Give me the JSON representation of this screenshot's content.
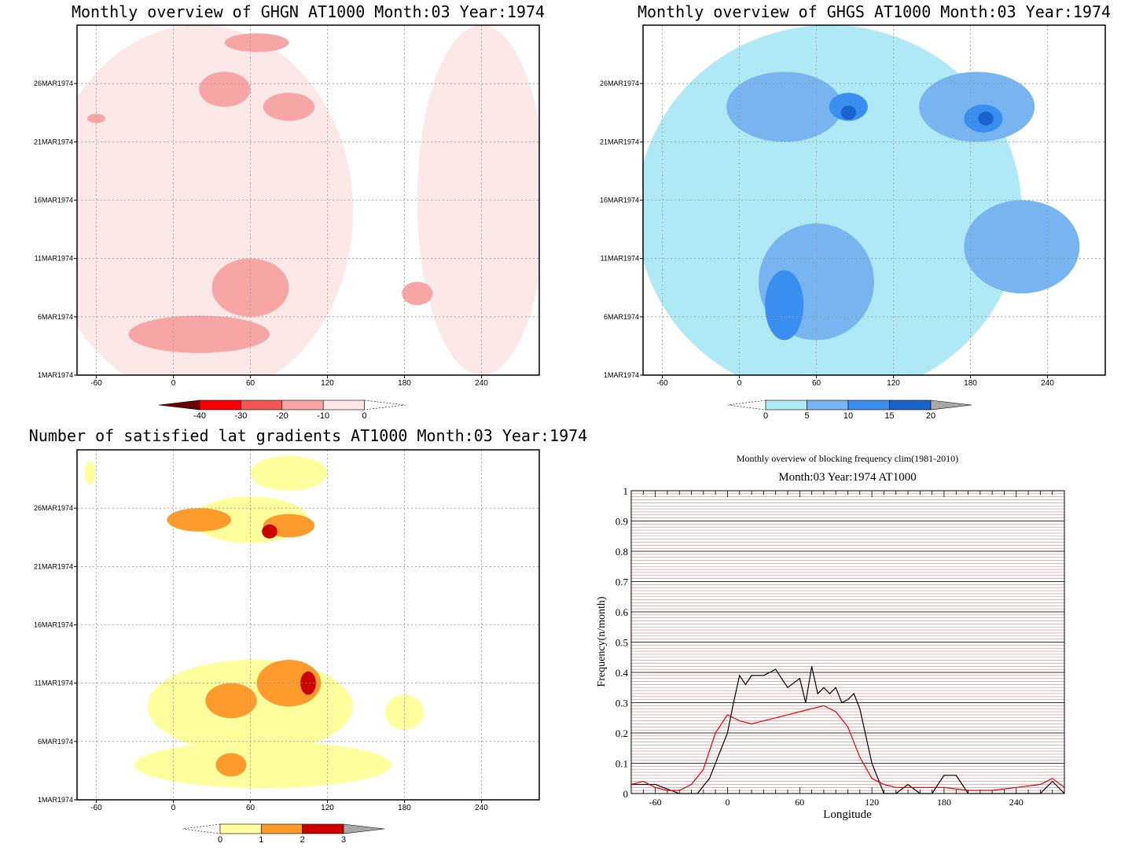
{
  "chart_data": [
    {
      "type": "heatmap",
      "title": "Monthly overview of GHGN AT1000 Month:03 Year:1974",
      "xlim": [
        -75,
        285
      ],
      "x_ticks": [
        "-60",
        "0",
        "60",
        "120",
        "180",
        "240"
      ],
      "y_ticks": [
        "26MAR1974",
        "21MAR1974",
        "16MAR1974",
        "11MAR1974",
        "6MAR1974",
        "1MAR1974"
      ],
      "colorbar": {
        "labels": [
          "-40",
          "-30",
          "-20",
          "-10",
          "0"
        ],
        "colors": [
          "#6b0000",
          "#ff0000",
          "#f55454",
          "#f7a5a5",
          "#fde8e8"
        ]
      },
      "blobs": [
        {
          "x": 20,
          "y": 3.5,
          "rx": 55,
          "ry": 1.6,
          "level": 1
        },
        {
          "x": 60,
          "y": 7.5,
          "rx": 30,
          "ry": 2.5,
          "level": 1
        },
        {
          "x": 190,
          "y": 7,
          "rx": 12,
          "ry": 1,
          "level": 1
        },
        {
          "x": 40,
          "y": 24.5,
          "rx": 20,
          "ry": 1.5,
          "level": 1
        },
        {
          "x": 90,
          "y": 23,
          "rx": 20,
          "ry": 1.2,
          "level": 1
        },
        {
          "x": 65,
          "y": 28.5,
          "rx": 25,
          "ry": 0.8,
          "level": 1
        },
        {
          "x": -60,
          "y": 22,
          "rx": 7,
          "ry": 0.4,
          "level": 1
        },
        {
          "x": 20,
          "y": 14,
          "rx": 120,
          "ry": 16,
          "level": 0
        },
        {
          "x": 240,
          "y": 15,
          "rx": 50,
          "ry": 15,
          "level": 0
        }
      ]
    },
    {
      "type": "heatmap",
      "title": "Monthly overview of GHGS AT1000 Month:03 Year:1974",
      "xlim": [
        -75,
        285
      ],
      "x_ticks": [
        "-60",
        "0",
        "60",
        "120",
        "180",
        "240"
      ],
      "y_ticks": [
        "26MAR1974",
        "21MAR1974",
        "16MAR1974",
        "11MAR1974",
        "6MAR1974",
        "1MAR1974"
      ],
      "colorbar": {
        "labels": [
          "0",
          "5",
          "10",
          "15",
          "20"
        ],
        "colors": [
          "#aee9f5",
          "#78b4f0",
          "#3a8ef0",
          "#1a62d0"
        ]
      },
      "blobs": [
        {
          "x": 70,
          "y": 14,
          "rx": 150,
          "ry": 16,
          "level": 0
        },
        {
          "x": 60,
          "y": 8,
          "rx": 45,
          "ry": 5,
          "level": 1
        },
        {
          "x": 35,
          "y": 23,
          "rx": 45,
          "ry": 3,
          "level": 1
        },
        {
          "x": 185,
          "y": 23,
          "rx": 45,
          "ry": 3,
          "level": 1
        },
        {
          "x": 220,
          "y": 11,
          "rx": 45,
          "ry": 4,
          "level": 1
        },
        {
          "x": 35,
          "y": 6,
          "rx": 15,
          "ry": 3,
          "level": 2
        },
        {
          "x": 85,
          "y": 23,
          "rx": 15,
          "ry": 1.2,
          "level": 2
        },
        {
          "x": 190,
          "y": 22,
          "rx": 15,
          "ry": 1.2,
          "level": 2
        },
        {
          "x": 85,
          "y": 22.5,
          "rx": 6,
          "ry": 0.6,
          "level": 3
        },
        {
          "x": 192,
          "y": 22,
          "rx": 6,
          "ry": 0.6,
          "level": 3
        }
      ]
    },
    {
      "type": "heatmap",
      "title": "Number of satisfied lat gradients AT1000 Month:03 Year:1974",
      "xlim": [
        -75,
        285
      ],
      "x_ticks": [
        "-60",
        "0",
        "60",
        "120",
        "180",
        "240"
      ],
      "y_ticks": [
        "26MAR1974",
        "21MAR1974",
        "16MAR1974",
        "11MAR1974",
        "6MAR1974",
        "1MAR1974"
      ],
      "colorbar": {
        "labels": [
          "0",
          "1",
          "2",
          "3"
        ],
        "colors": [
          "#ffff9e",
          "#ff9a2c",
          "#cc0000"
        ]
      },
      "blobs": [
        {
          "x": 60,
          "y": 8,
          "rx": 80,
          "ry": 4,
          "level": 0
        },
        {
          "x": 70,
          "y": 3,
          "rx": 100,
          "ry": 2,
          "level": 0
        },
        {
          "x": 180,
          "y": 7.5,
          "rx": 15,
          "ry": 1.5,
          "level": 0
        },
        {
          "x": 60,
          "y": 24,
          "rx": 45,
          "ry": 2,
          "level": 0
        },
        {
          "x": 90,
          "y": 28,
          "rx": 30,
          "ry": 1.5,
          "level": 0
        },
        {
          "x": -65,
          "y": 28,
          "rx": 4,
          "ry": 1,
          "level": 0
        },
        {
          "x": 20,
          "y": 24,
          "rx": 25,
          "ry": 1,
          "level": 1
        },
        {
          "x": 90,
          "y": 23.5,
          "rx": 20,
          "ry": 1,
          "level": 1
        },
        {
          "x": 90,
          "y": 10,
          "rx": 25,
          "ry": 2,
          "level": 1
        },
        {
          "x": 45,
          "y": 8.5,
          "rx": 20,
          "ry": 1.5,
          "level": 1
        },
        {
          "x": 45,
          "y": 3,
          "rx": 12,
          "ry": 1,
          "level": 1
        },
        {
          "x": 105,
          "y": 10,
          "rx": 6,
          "ry": 1,
          "level": 2
        },
        {
          "x": 75,
          "y": 23,
          "rx": 6,
          "ry": 0.6,
          "level": 2
        }
      ]
    },
    {
      "type": "line",
      "title": "Monthly overview of blocking frequency clim(1981-2010)",
      "subtitle": "Month:03 Year:1974  AT1000",
      "xlabel": "Longitude",
      "ylabel": "Frequency(n/month)",
      "xlim": [
        -80,
        280
      ],
      "ylim": [
        0,
        1
      ],
      "x_ticks": [
        "-60",
        "0",
        "60",
        "120",
        "180",
        "240"
      ],
      "y_ticks": [
        "0",
        "0.1",
        "0.2",
        "0.3",
        "0.4",
        "0.5",
        "0.6",
        "0.7",
        "0.8",
        "0.9",
        "1"
      ],
      "series": [
        {
          "color": "#000000",
          "x": [
            -80,
            -60,
            -40,
            -25,
            -15,
            0,
            5,
            10,
            15,
            20,
            25,
            30,
            40,
            45,
            50,
            60,
            65,
            70,
            75,
            80,
            85,
            90,
            95,
            100,
            105,
            110,
            120,
            130,
            140,
            150,
            160,
            170,
            180,
            190,
            200,
            210,
            220,
            230,
            240,
            250,
            260,
            270,
            280
          ],
          "y": [
            0.03,
            0.03,
            0.0,
            0.0,
            0.05,
            0.2,
            0.3,
            0.39,
            0.36,
            0.39,
            0.39,
            0.39,
            0.41,
            0.38,
            0.35,
            0.38,
            0.3,
            0.42,
            0.33,
            0.35,
            0.33,
            0.35,
            0.3,
            0.31,
            0.33,
            0.28,
            0.1,
            0.0,
            0.0,
            0.03,
            0.0,
            0.0,
            0.06,
            0.06,
            0.0,
            0.0,
            0.0,
            0.0,
            0.0,
            0.0,
            0.0,
            0.04,
            0.0
          ]
        },
        {
          "color": "#e00000",
          "x": [
            -80,
            -70,
            -60,
            -50,
            -40,
            -30,
            -20,
            -10,
            0,
            10,
            20,
            30,
            40,
            50,
            60,
            70,
            80,
            90,
            100,
            110,
            120,
            130,
            140,
            160,
            180,
            200,
            220,
            240,
            260,
            270,
            280
          ],
          "y": [
            0.03,
            0.04,
            0.02,
            0.01,
            0.01,
            0.03,
            0.08,
            0.2,
            0.26,
            0.24,
            0.23,
            0.24,
            0.25,
            0.26,
            0.27,
            0.28,
            0.29,
            0.27,
            0.22,
            0.12,
            0.05,
            0.03,
            0.02,
            0.02,
            0.02,
            0.01,
            0.01,
            0.02,
            0.03,
            0.05,
            0.02
          ]
        }
      ]
    }
  ]
}
